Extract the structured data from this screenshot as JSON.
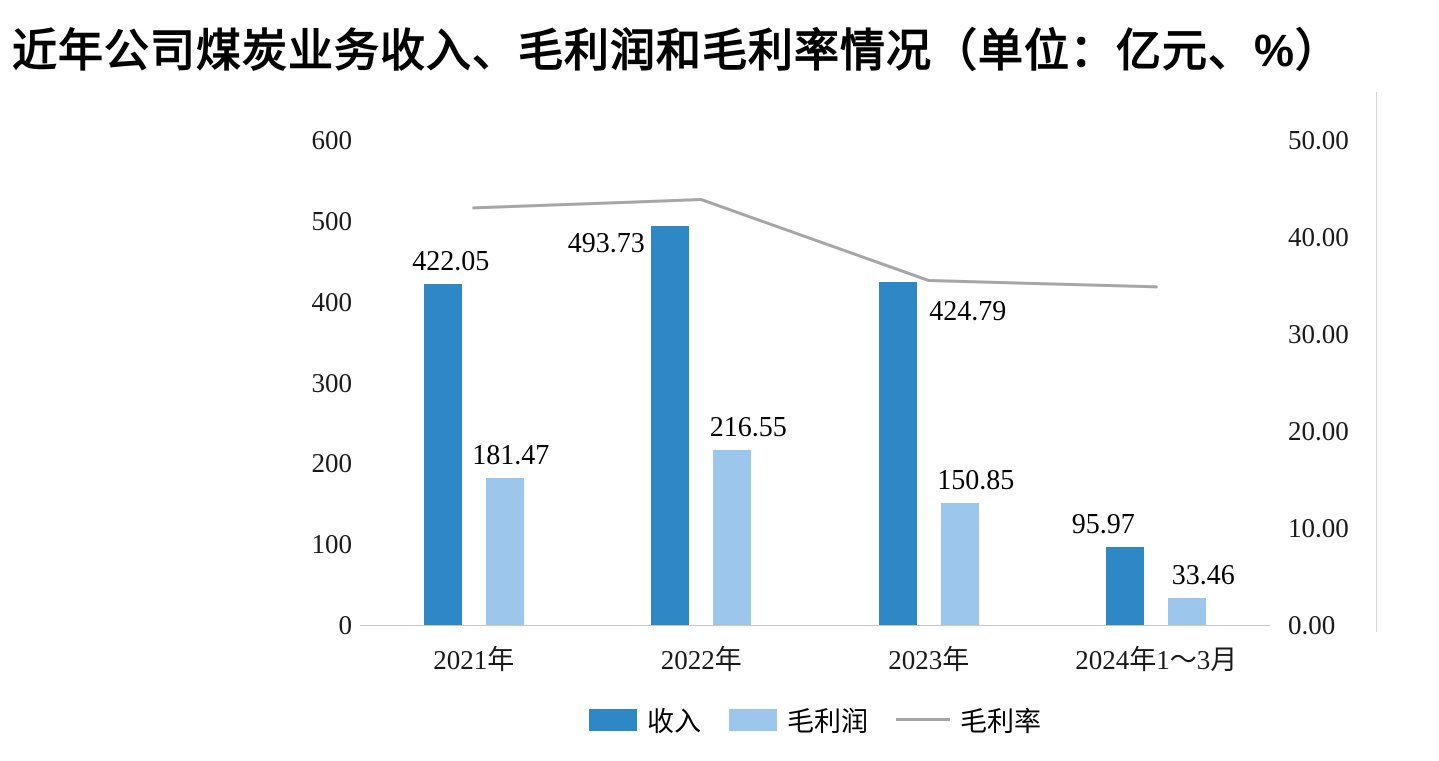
{
  "chart_data": {
    "type": "bar",
    "title": "近年公司煤炭业务收入、毛利润和毛利率情况（单位：亿元、%）",
    "categories": [
      "2021年",
      "2022年",
      "2023年",
      "2024年1～3月"
    ],
    "series": [
      {
        "name": "收入",
        "type": "bar",
        "axis": "left",
        "color": "#2f88c6",
        "values": [
          422.05,
          493.73,
          424.79,
          95.97
        ],
        "labels": [
          "422.05",
          "493.73",
          "424.79",
          "95.97"
        ]
      },
      {
        "name": "毛利润",
        "type": "bar",
        "axis": "left",
        "color": "#9cc6eb",
        "values": [
          181.47,
          216.55,
          150.85,
          33.46
        ],
        "labels": [
          "181.47",
          "216.55",
          "150.85",
          "33.46"
        ]
      },
      {
        "name": "毛利率",
        "type": "line",
        "axis": "right",
        "color": "#a6a6a6",
        "values": [
          43.0,
          43.86,
          35.51,
          34.86
        ]
      }
    ],
    "left_axis": {
      "min": 0,
      "max": 600,
      "step": 100,
      "ticks": [
        "600",
        "500",
        "400",
        "300",
        "200",
        "100",
        "0"
      ]
    },
    "right_axis": {
      "min": 0,
      "max": 50,
      "step": 10,
      "ticks": [
        "50.00",
        "40.00",
        "30.00",
        "20.00",
        "10.00",
        "0.00"
      ]
    },
    "grid": false,
    "legend_position": "bottom"
  }
}
